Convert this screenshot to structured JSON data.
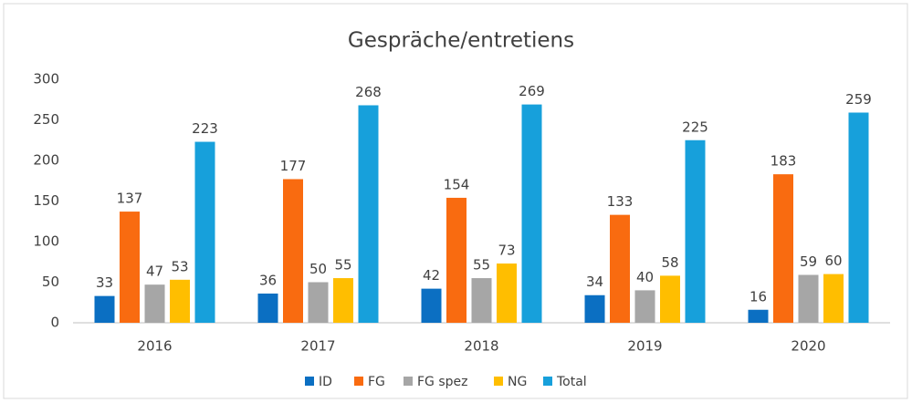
{
  "chart_data": {
    "type": "bar",
    "title": "Gespräche/entretiens",
    "categories": [
      "2016",
      "2017",
      "2018",
      "2019",
      "2020"
    ],
    "series": [
      {
        "name": "ID",
        "color": "#0b6fc2",
        "values": [
          33,
          36,
          42,
          34,
          16
        ]
      },
      {
        "name": "FG",
        "color": "#f96b10",
        "values": [
          137,
          177,
          154,
          133,
          183
        ]
      },
      {
        "name": "FG spez",
        "color": "#a6a6a6",
        "values": [
          47,
          50,
          55,
          40,
          59
        ]
      },
      {
        "name": "NG",
        "color": "#ffbe00",
        "values": [
          53,
          55,
          73,
          58,
          60
        ]
      },
      {
        "name": "Total",
        "color": "#17a0db",
        "values": [
          223,
          268,
          269,
          225,
          259
        ]
      }
    ],
    "ylim": [
      0,
      300
    ],
    "yticks": [
      0,
      50,
      100,
      150,
      200,
      250,
      300
    ],
    "grid": false,
    "legend": "bottom"
  }
}
